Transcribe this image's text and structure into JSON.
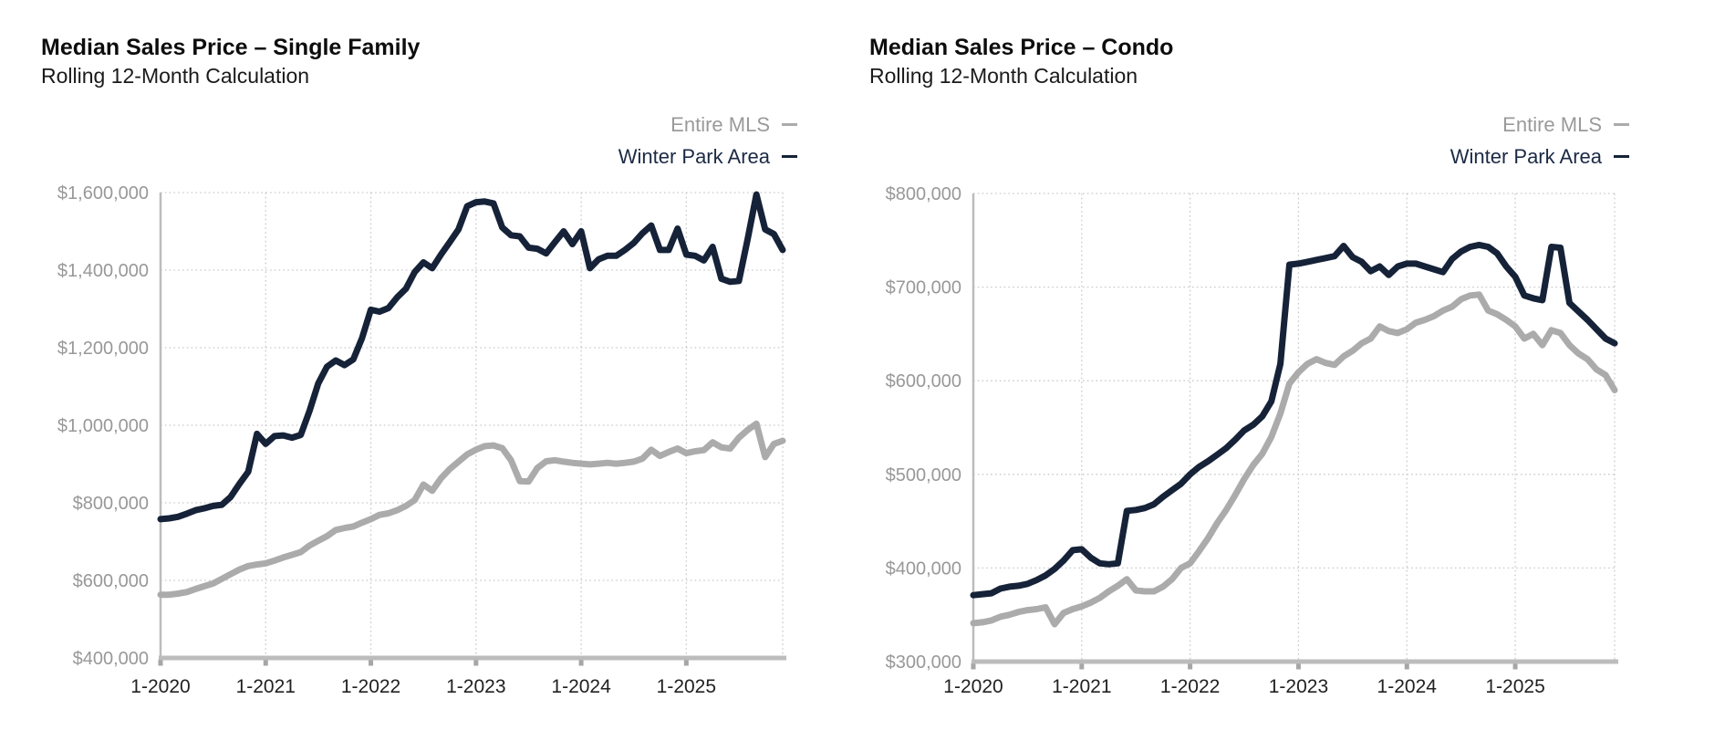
{
  "chart_data": [
    {
      "type": "line",
      "title": "Median Sales Price – Single Family",
      "subtitle": "Rolling 12-Month Calculation",
      "x_unit": "month",
      "x_range": [
        "1-2020",
        "12-2025"
      ],
      "x_tick_labels": [
        "1-2020",
        "1-2021",
        "1-2022",
        "1-2023",
        "1-2024",
        "1-2025"
      ],
      "y_tick_labels": [
        "$1,600,000",
        "$1,400,000",
        "$1,200,000",
        "$1,000,000",
        "$800,000",
        "$600,000",
        "$400,000"
      ],
      "ylim": [
        400000,
        1600000
      ],
      "grid": "dotted",
      "legend_position": "top-right",
      "legend": [
        {
          "label": "Entire MLS",
          "color": "#ababab",
          "text_color": "#9a9a9a"
        },
        {
          "label": "Winter Park Area",
          "color": "#152238",
          "text_color": "#1b2a44"
        }
      ],
      "series": [
        {
          "name": "Entire MLS",
          "color": "#ababab",
          "values": [
            563000,
            563000,
            566000,
            570000,
            578000,
            585000,
            592000,
            604000,
            616000,
            628000,
            637000,
            641000,
            644000,
            651000,
            659000,
            666000,
            673000,
            690000,
            702000,
            714000,
            730000,
            735000,
            739000,
            749000,
            758000,
            769000,
            773000,
            781000,
            792000,
            807000,
            847000,
            831000,
            863000,
            887000,
            906000,
            925000,
            937000,
            946000,
            948000,
            941000,
            910000,
            856000,
            855000,
            890000,
            907000,
            910000,
            906000,
            903000,
            901000,
            899000,
            901000,
            903000,
            901000,
            903000,
            906000,
            914000,
            937000,
            921000,
            931000,
            940000,
            928000,
            933000,
            936000,
            956000,
            943000,
            940000,
            968000,
            988000,
            1004000,
            918000,
            952000,
            960000
          ]
        },
        {
          "name": "Winter Park Area",
          "color": "#152238",
          "values": [
            758000,
            760000,
            764000,
            772000,
            781000,
            786000,
            792000,
            795000,
            815000,
            849000,
            880000,
            978000,
            952000,
            972000,
            974000,
            968000,
            975000,
            1037000,
            1108000,
            1151000,
            1167000,
            1155000,
            1170000,
            1225000,
            1298000,
            1293000,
            1302000,
            1330000,
            1352000,
            1395000,
            1420000,
            1405000,
            1440000,
            1472000,
            1505000,
            1565000,
            1575000,
            1577000,
            1572000,
            1510000,
            1490000,
            1487000,
            1458000,
            1455000,
            1443000,
            1472000,
            1500000,
            1467000,
            1500000,
            1405000,
            1428000,
            1437000,
            1437000,
            1452000,
            1470000,
            1495000,
            1515000,
            1452000,
            1452000,
            1507000,
            1440000,
            1437000,
            1425000,
            1460000,
            1378000,
            1370000,
            1372000,
            1480000,
            1595000,
            1505000,
            1493000,
            1452000
          ]
        }
      ]
    },
    {
      "type": "line",
      "title": "Median Sales Price – Condo",
      "subtitle": "Rolling 12-Month Calculation",
      "x_unit": "month",
      "x_range": [
        "1-2020",
        "12-2025"
      ],
      "x_tick_labels": [
        "1-2020",
        "1-2021",
        "1-2022",
        "1-2023",
        "1-2024",
        "1-2025"
      ],
      "y_tick_labels": [
        "$800,000",
        "$700,000",
        "$600,000",
        "$500,000",
        "$400,000",
        "$300,000"
      ],
      "ylim": [
        300000,
        800000
      ],
      "grid": "dotted",
      "legend_position": "top-right",
      "legend": [
        {
          "label": "Entire MLS",
          "color": "#ababab",
          "text_color": "#9a9a9a"
        },
        {
          "label": "Winter Park Area",
          "color": "#152238",
          "text_color": "#1b2a44"
        }
      ],
      "series": [
        {
          "name": "Entire MLS",
          "color": "#ababab",
          "values": [
            341000,
            342000,
            344000,
            348000,
            350000,
            353000,
            355000,
            356000,
            358000,
            340000,
            352000,
            356000,
            359000,
            363000,
            368000,
            375000,
            381000,
            388000,
            376000,
            375000,
            375000,
            380000,
            388000,
            400000,
            405000,
            418000,
            432000,
            448000,
            462000,
            478000,
            495000,
            510000,
            522000,
            540000,
            565000,
            597000,
            609000,
            618000,
            623000,
            619000,
            617000,
            626000,
            632000,
            640000,
            645000,
            658000,
            653000,
            651000,
            655000,
            662000,
            665000,
            669000,
            675000,
            679000,
            687000,
            691000,
            692000,
            675000,
            671000,
            665000,
            658000,
            645000,
            650000,
            638000,
            654000,
            651000,
            638000,
            629000,
            623000,
            612000,
            606000,
            590000
          ]
        },
        {
          "name": "Winter Park Area",
          "color": "#152238",
          "values": [
            371000,
            372000,
            373000,
            378000,
            380000,
            381000,
            383000,
            387000,
            392000,
            399000,
            408000,
            419000,
            420000,
            411000,
            405000,
            404000,
            405000,
            461000,
            462000,
            464000,
            468000,
            476000,
            483000,
            490000,
            500000,
            508000,
            514000,
            521000,
            528000,
            537000,
            547000,
            553000,
            562000,
            578000,
            618000,
            724000,
            725000,
            727000,
            729000,
            731000,
            733000,
            744000,
            732000,
            727000,
            717000,
            722000,
            713000,
            722000,
            725000,
            725000,
            722000,
            719000,
            716000,
            730000,
            738000,
            743000,
            745000,
            743000,
            736000,
            722000,
            711000,
            691000,
            688000,
            686000,
            743000,
            742000,
            683000,
            674000,
            665000,
            655000,
            645000,
            640000
          ]
        }
      ]
    }
  ],
  "style": {
    "grid_color": "#c9c9c9",
    "axis_color": "#bcbcbc",
    "tick_color": "#a6a6a6",
    "y_label_color": "#989898",
    "x_label_color": "#212121",
    "background": "#ffffff"
  }
}
